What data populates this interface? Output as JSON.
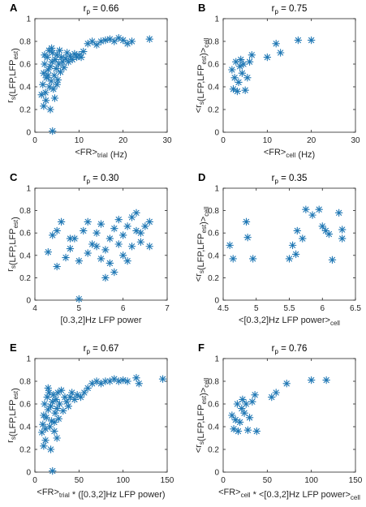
{
  "colors": {
    "marker": "#1f77b4",
    "axis": "#262626"
  },
  "chart_data": [
    {
      "id": "A",
      "type": "scatter",
      "marker": "asterisk",
      "title_base": "r",
      "title_sub": "p",
      "title_tail": " = 0.66",
      "xlabel_parts": [
        [
          "<FR>",
          ""
        ],
        [
          "trial",
          "sub"
        ],
        [
          " (Hz)",
          ""
        ]
      ],
      "ylabel_parts": [
        [
          "r",
          ""
        ],
        [
          "s",
          ""
        ],
        [
          "(LFP,LFP",
          ""
        ],
        [
          "est",
          ""
        ],
        [
          ")",
          ""
        ]
      ],
      "xlim": [
        0,
        30
      ],
      "ylim": [
        0,
        1
      ],
      "xticks": [
        "0",
        "10",
        "20",
        "30"
      ],
      "yticks": [
        "0",
        "0.2",
        "0.4",
        "0.6",
        "0.8",
        "1"
      ],
      "points": [
        [
          1.5,
          0.33
        ],
        [
          1.8,
          0.42
        ],
        [
          2.0,
          0.52
        ],
        [
          2.2,
          0.6
        ],
        [
          2.4,
          0.35
        ],
        [
          2.6,
          0.48
        ],
        [
          2.8,
          0.66
        ],
        [
          3.0,
          0.55
        ],
        [
          3.2,
          0.72
        ],
        [
          3.3,
          0.4
        ],
        [
          3.5,
          0.58
        ],
        [
          3.7,
          0.45
        ],
        [
          3.9,
          0.62
        ],
        [
          4.0,
          0.7
        ],
        [
          4.2,
          0.38
        ],
        [
          4.4,
          0.5
        ],
        [
          4.6,
          0.64
        ],
        [
          4.8,
          0.56
        ],
        [
          5.0,
          0.68
        ],
        [
          5.2,
          0.46
        ],
        [
          5.4,
          0.6
        ],
        [
          5.6,
          0.72
        ],
        [
          5.8,
          0.53
        ],
        [
          6.0,
          0.66
        ],
        [
          6.3,
          0.62
        ],
        [
          6.6,
          0.57
        ],
        [
          7.0,
          0.65
        ],
        [
          7.3,
          0.7
        ],
        [
          7.6,
          0.62
        ],
        [
          8.0,
          0.67
        ],
        [
          8.5,
          0.64
        ],
        [
          9.0,
          0.69
        ],
        [
          9.5,
          0.66
        ],
        [
          10.0,
          0.68
        ],
        [
          10.5,
          0.66
        ],
        [
          11.0,
          0.71
        ],
        [
          12.0,
          0.78
        ],
        [
          13.0,
          0.8
        ],
        [
          14.0,
          0.77
        ],
        [
          15.0,
          0.8
        ],
        [
          16.0,
          0.81
        ],
        [
          17.0,
          0.82
        ],
        [
          18.0,
          0.8
        ],
        [
          19.0,
          0.83
        ],
        [
          20.0,
          0.81
        ],
        [
          21.0,
          0.78
        ],
        [
          22.0,
          0.8
        ],
        [
          26.0,
          0.82
        ],
        [
          2.0,
          0.23
        ],
        [
          3.5,
          0.2
        ],
        [
          4.0,
          0.01
        ],
        [
          2.5,
          0.28
        ],
        [
          3.0,
          0.5
        ],
        [
          4.5,
          0.3
        ],
        [
          5.0,
          0.42
        ],
        [
          3.8,
          0.74
        ],
        [
          2.2,
          0.68
        ]
      ]
    },
    {
      "id": "B",
      "type": "scatter",
      "marker": "asterisk",
      "title_base": "r",
      "title_sub": "p",
      "title_tail": " = 0.75",
      "xlabel_parts": [
        [
          "<FR>",
          ""
        ],
        [
          "cell",
          "sub"
        ],
        [
          " (Hz)",
          ""
        ]
      ],
      "ylabel_parts": [
        [
          "<r",
          ""
        ],
        [
          "s",
          ""
        ],
        [
          "(LFP,LFP",
          ""
        ],
        [
          "est",
          ""
        ],
        [
          ")>",
          ""
        ],
        [
          "cell",
          ""
        ]
      ],
      "xlim": [
        0,
        30
      ],
      "ylim": [
        0,
        1
      ],
      "xticks": [
        "0",
        "10",
        "20",
        "30"
      ],
      "yticks": [
        "0",
        "0.2",
        "0.4",
        "0.6",
        "0.8",
        "1"
      ],
      "points": [
        [
          2.0,
          0.55
        ],
        [
          2.3,
          0.38
        ],
        [
          2.6,
          0.48
        ],
        [
          2.9,
          0.62
        ],
        [
          3.2,
          0.36
        ],
        [
          3.5,
          0.44
        ],
        [
          3.8,
          0.58
        ],
        [
          4.0,
          0.64
        ],
        [
          4.3,
          0.52
        ],
        [
          4.6,
          0.6
        ],
        [
          5.0,
          0.37
        ],
        [
          5.5,
          0.48
        ],
        [
          6.0,
          0.62
        ],
        [
          6.5,
          0.68
        ],
        [
          10.0,
          0.66
        ],
        [
          12.0,
          0.78
        ],
        [
          13.0,
          0.7
        ],
        [
          17.0,
          0.81
        ],
        [
          20.0,
          0.81
        ]
      ]
    },
    {
      "id": "C",
      "type": "scatter",
      "marker": "asterisk",
      "title_base": "r",
      "title_sub": "p",
      "title_tail": " = 0.30",
      "xlabel_parts": [
        [
          "[0.3,2]Hz LFP power",
          ""
        ]
      ],
      "ylabel_parts": [
        [
          "r",
          ""
        ],
        [
          "s",
          ""
        ],
        [
          "(LFP,LFP",
          ""
        ],
        [
          "est",
          ""
        ],
        [
          ")",
          ""
        ]
      ],
      "xlim": [
        4,
        7
      ],
      "ylim": [
        0,
        1
      ],
      "xticks": [
        "4",
        "5",
        "6",
        "7"
      ],
      "yticks": [
        "0",
        "0.2",
        "0.4",
        "0.6",
        "0.8",
        "1"
      ],
      "points": [
        [
          4.3,
          0.43
        ],
        [
          4.4,
          0.58
        ],
        [
          4.5,
          0.62
        ],
        [
          4.6,
          0.7
        ],
        [
          4.7,
          0.38
        ],
        [
          4.8,
          0.46
        ],
        [
          4.9,
          0.55
        ],
        [
          5.0,
          0.35
        ],
        [
          5.0,
          0.01
        ],
        [
          5.1,
          0.62
        ],
        [
          5.2,
          0.42
        ],
        [
          5.3,
          0.5
        ],
        [
          5.4,
          0.6
        ],
        [
          5.5,
          0.68
        ],
        [
          5.5,
          0.37
        ],
        [
          5.6,
          0.2
        ],
        [
          5.6,
          0.45
        ],
        [
          5.7,
          0.55
        ],
        [
          5.8,
          0.25
        ],
        [
          5.8,
          0.64
        ],
        [
          5.9,
          0.72
        ],
        [
          6.0,
          0.4
        ],
        [
          6.0,
          0.58
        ],
        [
          6.1,
          0.66
        ],
        [
          6.2,
          0.74
        ],
        [
          6.2,
          0.48
        ],
        [
          6.3,
          0.62
        ],
        [
          6.3,
          0.78
        ],
        [
          6.4,
          0.52
        ],
        [
          6.5,
          0.66
        ],
        [
          6.6,
          0.48
        ],
        [
          6.6,
          0.7
        ],
        [
          4.5,
          0.3
        ],
        [
          4.8,
          0.55
        ],
        [
          5.2,
          0.7
        ],
        [
          5.4,
          0.48
        ],
        [
          5.7,
          0.33
        ],
        [
          5.9,
          0.5
        ],
        [
          6.1,
          0.35
        ],
        [
          6.4,
          0.6
        ]
      ]
    },
    {
      "id": "D",
      "type": "scatter",
      "marker": "asterisk",
      "title_base": "r",
      "title_sub": "p",
      "title_tail": " = 0.35",
      "xlabel_parts": [
        [
          "<[0.3,2]Hz LFP power>",
          ""
        ],
        [
          "cell",
          "sub"
        ]
      ],
      "ylabel_parts": [
        [
          "<r",
          ""
        ],
        [
          "s",
          ""
        ],
        [
          "(LFP,LFP",
          ""
        ],
        [
          "est",
          ""
        ],
        [
          ")>",
          ""
        ],
        [
          "cell",
          ""
        ]
      ],
      "xlim": [
        4.5,
        6.5
      ],
      "ylim": [
        0,
        1
      ],
      "xticks": [
        "4.5",
        "5",
        "5.5",
        "6",
        "6.5"
      ],
      "yticks": [
        "0",
        "0.2",
        "0.4",
        "0.6",
        "0.8",
        "1"
      ],
      "points": [
        [
          4.6,
          0.49
        ],
        [
          4.65,
          0.37
        ],
        [
          4.85,
          0.7
        ],
        [
          4.87,
          0.56
        ],
        [
          4.95,
          0.37
        ],
        [
          5.5,
          0.37
        ],
        [
          5.55,
          0.49
        ],
        [
          5.6,
          0.41
        ],
        [
          5.62,
          0.62
        ],
        [
          5.7,
          0.55
        ],
        [
          5.75,
          0.81
        ],
        [
          5.85,
          0.76
        ],
        [
          5.95,
          0.81
        ],
        [
          6.0,
          0.66
        ],
        [
          6.05,
          0.62
        ],
        [
          6.1,
          0.59
        ],
        [
          6.15,
          0.36
        ],
        [
          6.25,
          0.78
        ],
        [
          6.3,
          0.55
        ],
        [
          6.3,
          0.63
        ]
      ]
    },
    {
      "id": "E",
      "type": "scatter",
      "marker": "asterisk",
      "title_base": "r",
      "title_sub": "p",
      "title_tail": " = 0.67",
      "xlabel_parts": [
        [
          "<FR>",
          ""
        ],
        [
          "trial",
          "sub"
        ],
        [
          " * ([0.3,2]Hz LFP power)",
          ""
        ]
      ],
      "ylabel_parts": [
        [
          "r",
          ""
        ],
        [
          "s",
          ""
        ],
        [
          "(LFP,LFP",
          ""
        ],
        [
          "est",
          ""
        ],
        [
          ")",
          ""
        ]
      ],
      "xlim": [
        0,
        150
      ],
      "ylim": [
        0,
        1
      ],
      "xticks": [
        "0",
        "50",
        "100",
        "150"
      ],
      "yticks": [
        "0",
        "0.2",
        "0.4",
        "0.6",
        "0.8",
        "1"
      ],
      "points": [
        [
          8,
          0.35
        ],
        [
          9,
          0.42
        ],
        [
          10,
          0.5
        ],
        [
          11,
          0.6
        ],
        [
          12,
          0.38
        ],
        [
          13,
          0.48
        ],
        [
          14,
          0.66
        ],
        [
          15,
          0.55
        ],
        [
          16,
          0.7
        ],
        [
          17,
          0.4
        ],
        [
          18,
          0.58
        ],
        [
          19,
          0.45
        ],
        [
          20,
          0.62
        ],
        [
          21,
          0.68
        ],
        [
          22,
          0.36
        ],
        [
          23,
          0.52
        ],
        [
          24,
          0.64
        ],
        [
          25,
          0.56
        ],
        [
          26,
          0.7
        ],
        [
          27,
          0.47
        ],
        [
          28,
          0.6
        ],
        [
          30,
          0.72
        ],
        [
          32,
          0.54
        ],
        [
          34,
          0.66
        ],
        [
          36,
          0.62
        ],
        [
          38,
          0.58
        ],
        [
          40,
          0.66
        ],
        [
          42,
          0.7
        ],
        [
          45,
          0.64
        ],
        [
          48,
          0.68
        ],
        [
          52,
          0.66
        ],
        [
          56,
          0.7
        ],
        [
          60,
          0.74
        ],
        [
          65,
          0.78
        ],
        [
          70,
          0.8
        ],
        [
          75,
          0.78
        ],
        [
          80,
          0.8
        ],
        [
          85,
          0.8
        ],
        [
          90,
          0.82
        ],
        [
          95,
          0.8
        ],
        [
          100,
          0.81
        ],
        [
          105,
          0.8
        ],
        [
          115,
          0.83
        ],
        [
          118,
          0.78
        ],
        [
          145,
          0.82
        ],
        [
          10,
          0.23
        ],
        [
          18,
          0.2
        ],
        [
          20,
          0.01
        ],
        [
          12,
          0.28
        ],
        [
          25,
          0.3
        ],
        [
          15,
          0.74
        ],
        [
          22,
          0.44
        ]
      ]
    },
    {
      "id": "F",
      "type": "scatter",
      "marker": "asterisk",
      "title_base": "r",
      "title_sub": "p",
      "title_tail": " = 0.76",
      "xlabel_parts": [
        [
          "<FR>",
          ""
        ],
        [
          "cell",
          "sub"
        ],
        [
          " * <[0.3,2]Hz LFP power>",
          ""
        ],
        [
          "cell",
          "sub"
        ]
      ],
      "ylabel_parts": [
        [
          "<r",
          ""
        ],
        [
          "s",
          ""
        ],
        [
          "(LFP,LFP",
          ""
        ],
        [
          "est",
          ""
        ],
        [
          ")>",
          ""
        ],
        [
          "cell",
          ""
        ]
      ],
      "xlim": [
        0,
        150
      ],
      "ylim": [
        0,
        1
      ],
      "xticks": [
        "0",
        "50",
        "100",
        "150"
      ],
      "yticks": [
        "0",
        "0.2",
        "0.4",
        "0.6",
        "0.8",
        "1"
      ],
      "points": [
        [
          10,
          0.5
        ],
        [
          12,
          0.38
        ],
        [
          14,
          0.46
        ],
        [
          16,
          0.6
        ],
        [
          17,
          0.36
        ],
        [
          19,
          0.44
        ],
        [
          21,
          0.56
        ],
        [
          22,
          0.64
        ],
        [
          24,
          0.52
        ],
        [
          26,
          0.6
        ],
        [
          28,
          0.37
        ],
        [
          30,
          0.48
        ],
        [
          33,
          0.62
        ],
        [
          36,
          0.68
        ],
        [
          38,
          0.36
        ],
        [
          55,
          0.66
        ],
        [
          60,
          0.7
        ],
        [
          72,
          0.78
        ],
        [
          100,
          0.81
        ],
        [
          117,
          0.81
        ]
      ]
    }
  ]
}
